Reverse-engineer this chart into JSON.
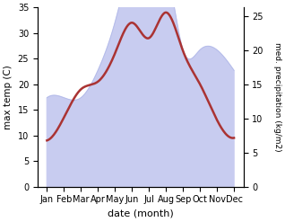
{
  "months": [
    "Jan",
    "Feb",
    "Mar",
    "Apr",
    "May",
    "Jun",
    "Jul",
    "Aug",
    "Sep",
    "Oct",
    "Nov",
    "Dec"
  ],
  "temp": [
    9,
    13.5,
    19,
    20.5,
    26,
    32,
    29,
    34,
    26.5,
    20,
    13,
    9.5
  ],
  "precip": [
    13,
    13,
    13,
    17,
    24,
    32,
    32,
    32,
    20,
    20,
    20,
    17
  ],
  "temp_color": "#aa3333",
  "precip_fill_color": "#c8ccf0",
  "precip_edge_color": "#b0b8e8",
  "temp_ylim": [
    0,
    35
  ],
  "precip_ylim": [
    0,
    26.25
  ],
  "temp_yticks": [
    0,
    5,
    10,
    15,
    20,
    25,
    30,
    35
  ],
  "precip_yticks": [
    0,
    5,
    10,
    15,
    20,
    25
  ],
  "ylabel_left": "max temp (C)",
  "ylabel_right": "med. precipitation (kg/m2)",
  "xlabel": "date (month)",
  "bg_color": "#ffffff"
}
